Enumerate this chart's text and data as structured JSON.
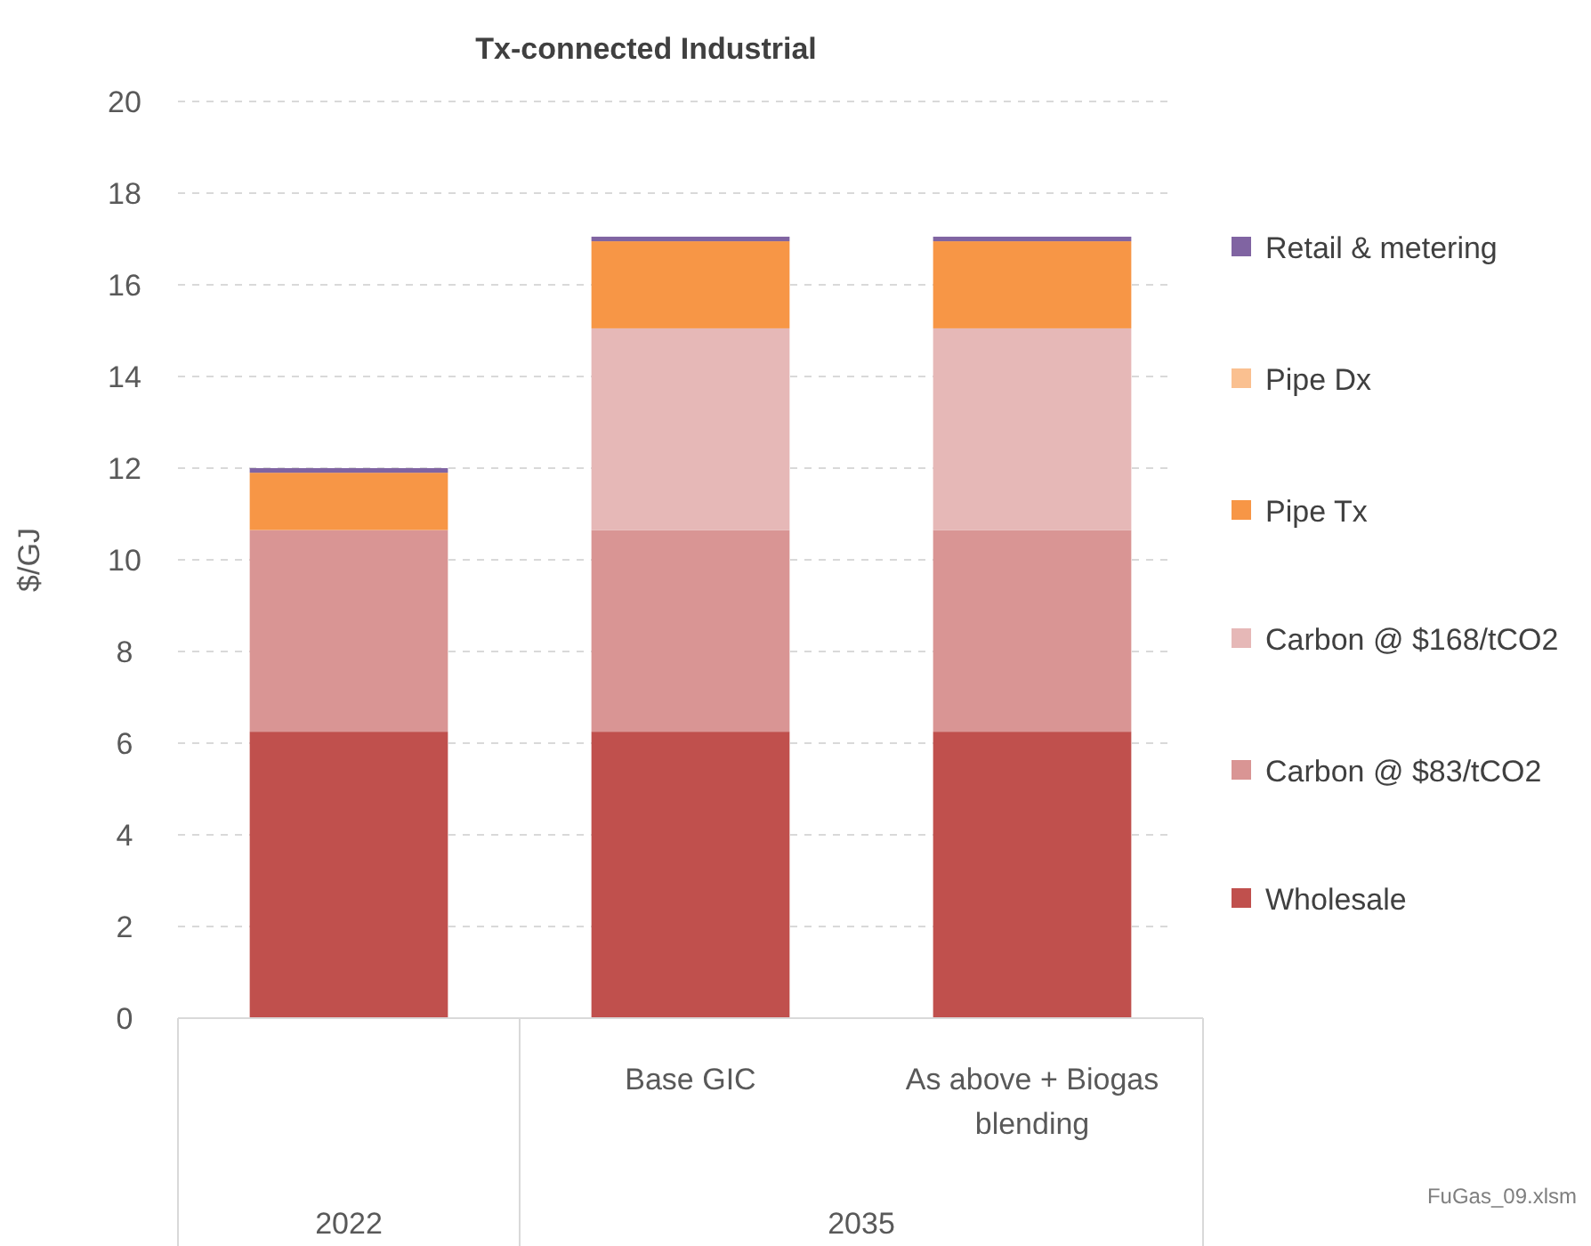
{
  "chart_data": {
    "type": "bar",
    "title": "Tx-connected Industrial",
    "ylabel": "$/GJ",
    "stacked": true,
    "categories": [
      null,
      "Base GIC",
      "As above + Biogas blending"
    ],
    "series": [
      {
        "name": "Wholesale",
        "color": "#c0504d",
        "values": [
          6.25,
          6.25,
          6.25
        ]
      },
      {
        "name": "Carbon @ $83/tCO2",
        "color": "#d99594",
        "values": [
          4.4,
          4.4,
          4.4
        ]
      },
      {
        "name": "Carbon @ $168/tCO2",
        "color": "#e6b8b7",
        "values": [
          0,
          4.4,
          4.4
        ]
      },
      {
        "name": "Pipe Tx",
        "color": "#f79646",
        "values": [
          1.25,
          1.9,
          1.9
        ]
      },
      {
        "name": "Pipe Dx",
        "color": "#fac090",
        "values": [
          0,
          0,
          0
        ]
      },
      {
        "name": "Retail & metering",
        "color": "#8064a2",
        "values": [
          0.1,
          0.1,
          0.1
        ]
      }
    ],
    "ylim": [
      0,
      20
    ],
    "yticks": [
      0,
      2,
      4,
      6,
      8,
      10,
      12,
      14,
      16,
      18,
      20
    ],
    "grid": "y",
    "legend": "right",
    "annotations": [
      "2022",
      "2035",
      "FuGas_09.xlsm"
    ]
  }
}
